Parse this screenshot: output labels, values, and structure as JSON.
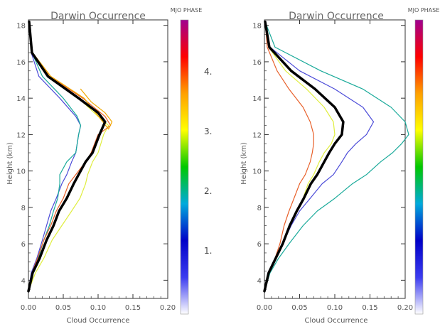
{
  "colors": {
    "mean": "#000000",
    "phase1": "#4b4bd8",
    "phase2": "#1aaa9a",
    "phase3": "#e0ee40",
    "phase4": "#e8602a",
    "gold": "#f0a800"
  },
  "colorbar": {
    "title": "MJO PHASE",
    "stops": [
      "#ffffff",
      "#3c3cf0",
      "#0000c8",
      "#00aadc",
      "#00c800",
      "#ffff00",
      "#ffa000",
      "#ff0000",
      "#a00090"
    ],
    "phase_labels": [
      "4.",
      "3.",
      "2.",
      "1."
    ]
  },
  "chart_data": [
    {
      "type": "line",
      "title": "Darwin Occurrence",
      "xlabel": "Cloud Occurrence",
      "ylabel": "Height (km)",
      "xlim": [
        0,
        0.2
      ],
      "ylim": [
        3,
        18.3
      ],
      "xticks": [
        "0.00",
        "0.05",
        "0.10",
        "0.15",
        "0.20"
      ],
      "yticks": [
        "4",
        "6",
        "8",
        "10",
        "12",
        "14",
        "16",
        "18"
      ],
      "series": [
        {
          "color": "phase1",
          "width": 1.2,
          "x": [
            0.0,
            0.004,
            0.012,
            0.02,
            0.026,
            0.032,
            0.04,
            0.048,
            0.055,
            0.062,
            0.068,
            0.072,
            0.075,
            0.068,
            0.045,
            0.015,
            0.004,
            0.001
          ],
          "y": [
            3.4,
            4.4,
            5.2,
            6.2,
            7.0,
            7.8,
            8.5,
            9.3,
            9.8,
            10.5,
            11.0,
            12.0,
            12.5,
            13.0,
            14.0,
            15.2,
            16.5,
            18.2
          ]
        },
        {
          "color": "phase2",
          "width": 1.2,
          "x": [
            0.0,
            0.006,
            0.014,
            0.022,
            0.03,
            0.036,
            0.042,
            0.045,
            0.045,
            0.055,
            0.068,
            0.072,
            0.075,
            0.07,
            0.05,
            0.02,
            0.005,
            0.001
          ],
          "y": [
            3.4,
            4.4,
            5.2,
            6.2,
            7.0,
            7.8,
            8.5,
            9.3,
            9.8,
            10.5,
            11.0,
            12.0,
            12.5,
            13.0,
            14.0,
            15.2,
            16.5,
            18.2
          ]
        },
        {
          "color": "phase3",
          "width": 1.2,
          "x": [
            0.0,
            0.01,
            0.022,
            0.034,
            0.048,
            0.062,
            0.074,
            0.082,
            0.085,
            0.092,
            0.1,
            0.108,
            0.115,
            0.1,
            0.072,
            0.03,
            0.006,
            0.001
          ],
          "y": [
            3.4,
            4.4,
            5.2,
            6.2,
            7.0,
            7.8,
            8.5,
            9.3,
            9.8,
            10.5,
            11.0,
            12.0,
            12.5,
            13.0,
            14.0,
            15.2,
            16.5,
            18.2
          ]
        },
        {
          "color": "phase4",
          "width": 1.2,
          "x": [
            0.0,
            0.005,
            0.013,
            0.022,
            0.032,
            0.04,
            0.05,
            0.058,
            0.068,
            0.082,
            0.09,
            0.1,
            0.118,
            0.11,
            0.078,
            0.03,
            0.006,
            0.001
          ],
          "y": [
            3.4,
            4.4,
            5.2,
            6.2,
            7.0,
            7.8,
            8.5,
            9.3,
            9.8,
            10.5,
            11.0,
            12.0,
            12.5,
            13.0,
            14.0,
            15.2,
            16.5,
            18.2
          ]
        },
        {
          "color": "gold",
          "width": 1.2,
          "x": [
            0.075,
            0.09,
            0.11,
            0.12,
            0.115,
            0.08,
            0.032,
            0.006
          ],
          "y": [
            14.5,
            13.8,
            13.2,
            12.7,
            12.3,
            14.0,
            15.2,
            16.5
          ]
        },
        {
          "color": "mean",
          "width": 3.5,
          "x": [
            0.0,
            0.006,
            0.016,
            0.026,
            0.036,
            0.044,
            0.055,
            0.065,
            0.072,
            0.082,
            0.092,
            0.102,
            0.11,
            0.1,
            0.072,
            0.028,
            0.005,
            0.001
          ],
          "y": [
            3.4,
            4.4,
            5.2,
            6.2,
            7.0,
            7.8,
            8.5,
            9.3,
            9.8,
            10.5,
            11.0,
            12.0,
            12.7,
            13.2,
            14.0,
            15.2,
            16.5,
            18.2
          ]
        }
      ]
    },
    {
      "type": "line",
      "title": "Darwin Occurrence",
      "xlabel": "Cloud Occurrence",
      "ylabel": "Height (km)",
      "xlim": [
        0,
        0.2
      ],
      "ylim": [
        3,
        18.3
      ],
      "xticks": [
        "0.00",
        "0.05",
        "0.10",
        "0.15",
        "0.20"
      ],
      "yticks": [
        "4",
        "6",
        "8",
        "10",
        "12",
        "14",
        "16",
        "18"
      ],
      "series": [
        {
          "color": "phase1",
          "width": 1.2,
          "x": [
            0.0,
            0.005,
            0.015,
            0.026,
            0.038,
            0.05,
            0.065,
            0.082,
            0.098,
            0.11,
            0.118,
            0.13,
            0.145,
            0.155,
            0.14,
            0.1,
            0.05,
            0.008,
            0.001
          ],
          "y": [
            3.4,
            4.4,
            5.2,
            6.0,
            7.0,
            7.8,
            8.5,
            9.3,
            9.8,
            10.5,
            11.0,
            11.5,
            12.0,
            12.7,
            13.5,
            14.5,
            15.5,
            16.8,
            18.2
          ]
        },
        {
          "color": "phase2",
          "width": 1.2,
          "x": [
            0.0,
            0.008,
            0.02,
            0.035,
            0.055,
            0.075,
            0.1,
            0.125,
            0.145,
            0.165,
            0.182,
            0.195,
            0.205,
            0.2,
            0.18,
            0.14,
            0.08,
            0.015,
            0.001
          ],
          "y": [
            3.4,
            4.4,
            5.2,
            6.0,
            7.0,
            7.8,
            8.5,
            9.3,
            9.8,
            10.5,
            11.0,
            11.5,
            12.0,
            12.7,
            13.5,
            14.5,
            15.5,
            16.8,
            18.2
          ]
        },
        {
          "color": "phase3",
          "width": 1.2,
          "x": [
            0.0,
            0.006,
            0.016,
            0.025,
            0.035,
            0.045,
            0.055,
            0.062,
            0.07,
            0.078,
            0.085,
            0.095,
            0.1,
            0.098,
            0.085,
            0.06,
            0.03,
            0.006,
            0.001
          ],
          "y": [
            3.4,
            4.4,
            5.2,
            6.0,
            7.0,
            7.8,
            8.5,
            9.3,
            9.8,
            10.5,
            11.0,
            11.5,
            12.0,
            12.7,
            13.5,
            14.5,
            15.5,
            16.8,
            18.2
          ]
        },
        {
          "color": "phase4",
          "width": 1.2,
          "x": [
            0.0,
            0.006,
            0.015,
            0.022,
            0.028,
            0.035,
            0.042,
            0.05,
            0.058,
            0.065,
            0.068,
            0.07,
            0.07,
            0.065,
            0.055,
            0.035,
            0.018,
            0.004,
            0.001
          ],
          "y": [
            3.4,
            4.4,
            5.2,
            6.0,
            7.0,
            7.8,
            8.5,
            9.3,
            9.8,
            10.5,
            11.0,
            11.5,
            12.0,
            12.7,
            13.5,
            14.5,
            15.5,
            16.8,
            18.2
          ]
        },
        {
          "color": "mean",
          "width": 3.5,
          "x": [
            0.0,
            0.006,
            0.016,
            0.026,
            0.036,
            0.046,
            0.056,
            0.066,
            0.075,
            0.085,
            0.092,
            0.1,
            0.11,
            0.112,
            0.1,
            0.072,
            0.038,
            0.007,
            0.001
          ],
          "y": [
            3.4,
            4.4,
            5.2,
            6.0,
            7.0,
            7.8,
            8.5,
            9.3,
            9.8,
            10.5,
            11.0,
            11.5,
            12.0,
            12.7,
            13.5,
            14.5,
            15.5,
            16.8,
            18.2
          ]
        }
      ]
    }
  ]
}
